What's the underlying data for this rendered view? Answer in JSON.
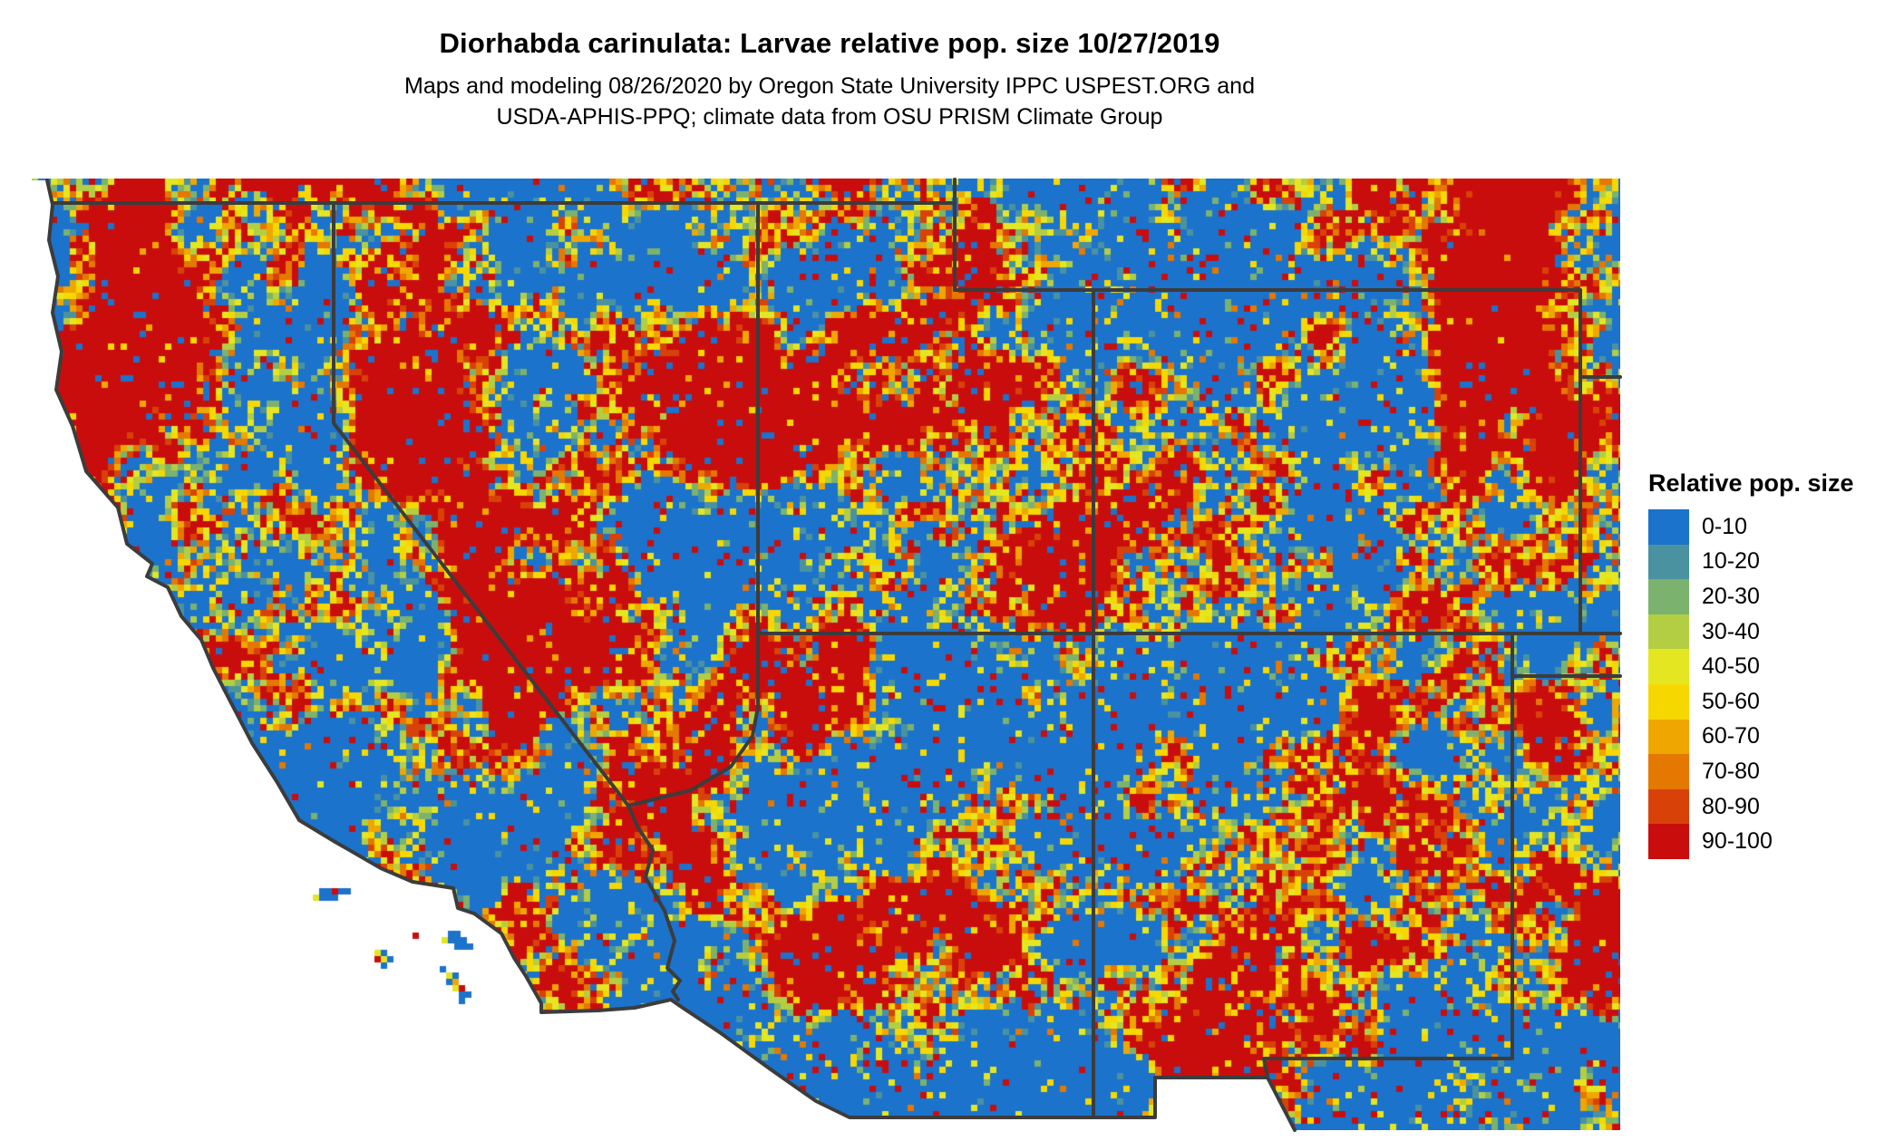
{
  "header": {
    "title": "Diorhabda carinulata: Larvae relative pop. size 10/27/2019",
    "subtitle_line1": "Maps and modeling 08/26/2020 by Oregon State University IPPC USPEST.ORG and",
    "subtitle_line2": "USDA-APHIS-PPQ; climate data from OSU PRISM Climate Group"
  },
  "legend": {
    "title": "Relative pop. size",
    "bins": [
      {
        "label": "0-10",
        "color": "#1B73CC"
      },
      {
        "label": "10-20",
        "color": "#4A92A0"
      },
      {
        "label": "20-30",
        "color": "#7BB26E"
      },
      {
        "label": "30-40",
        "color": "#B3CE43"
      },
      {
        "label": "40-50",
        "color": "#E4E622"
      },
      {
        "label": "50-60",
        "color": "#F6D800"
      },
      {
        "label": "60-70",
        "color": "#EFA700"
      },
      {
        "label": "70-80",
        "color": "#E47800"
      },
      {
        "label": "80-90",
        "color": "#D84208"
      },
      {
        "label": "90-100",
        "color": "#C90D0D"
      }
    ]
  },
  "map": {
    "background_color": "#FFFFFF",
    "no_data_color": "#FFFFFF",
    "state_border_color": "#3C3C3C"
  }
}
